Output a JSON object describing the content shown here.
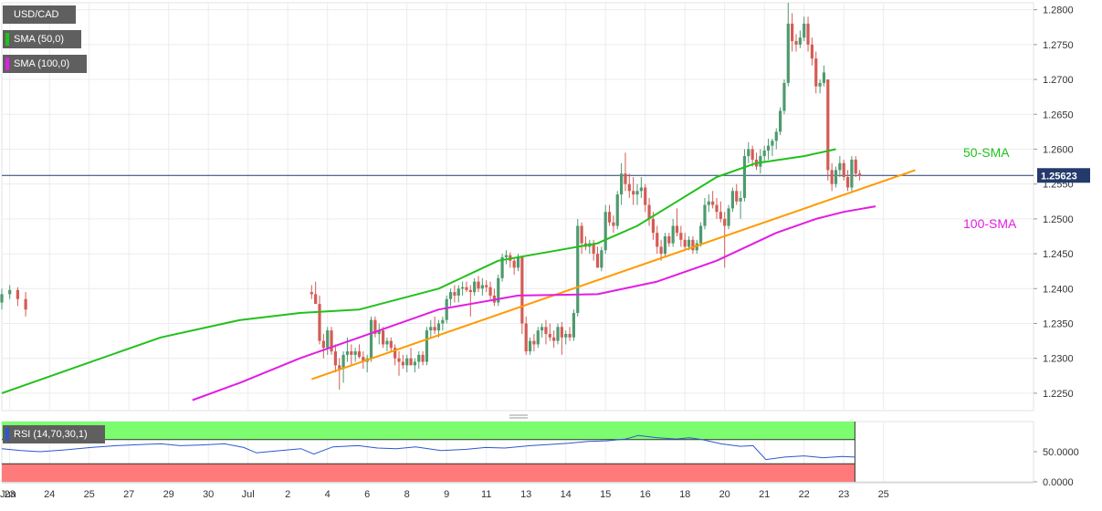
{
  "legend": {
    "symbol": "USD/CAD",
    "sma50_label": "SMA (50,0)",
    "sma100_label": "SMA (100,0)",
    "rsi_label": "RSI (14,70,30,1)"
  },
  "colors": {
    "bull": "#4e9a6f",
    "bear": "#d35c55",
    "sma50": "#22c01c",
    "sma100": "#e21de2",
    "trend": "#ff9a00",
    "rsi_line": "#2f56d1",
    "rsi_overbought": "#7cfc6f",
    "rsi_oversold": "#ff7b7b",
    "price_line": "#243a6b"
  },
  "chart_data": {
    "type": "candlestick",
    "instrument": "USD/CAD",
    "last_price": 1.25623,
    "last_price_label": "1.25623",
    "annotations": [
      "50-SMA",
      "100-SMA"
    ],
    "ylim": [
      1.2225,
      1.281
    ],
    "y_ticks": [
      1.225,
      1.23,
      1.235,
      1.24,
      1.245,
      1.25,
      1.255,
      1.26,
      1.265,
      1.27,
      1.275,
      1.28
    ],
    "y_tick_labels": [
      "1.2250",
      "1.2300",
      "1.2350",
      "1.2400",
      "1.2450",
      "1.2500",
      "1.2550",
      "1.2600",
      "1.2650",
      "1.2700",
      "1.2750",
      "1.2800"
    ],
    "x_ticks": [
      {
        "label": "Jun",
        "bar": -1
      },
      {
        "label": "23",
        "bar": 2
      },
      {
        "label": "24",
        "bar": 12
      },
      {
        "label": "25",
        "bar": 22
      },
      {
        "label": "27",
        "bar": 32
      },
      {
        "label": "29",
        "bar": 42
      },
      {
        "label": "30",
        "bar": 52
      },
      {
        "label": "Jul",
        "bar": 62
      },
      {
        "label": "2",
        "bar": 72
      },
      {
        "label": "4",
        "bar": 82
      },
      {
        "label": "6",
        "bar": 92
      },
      {
        "label": "8",
        "bar": 102
      },
      {
        "label": "9",
        "bar": 112
      },
      {
        "label": "11",
        "bar": 122
      },
      {
        "label": "13",
        "bar": 132
      },
      {
        "label": "14",
        "bar": 142
      },
      {
        "label": "15",
        "bar": 152
      },
      {
        "label": "16",
        "bar": 162
      },
      {
        "label": "18",
        "bar": 172
      },
      {
        "label": "20",
        "bar": 182
      },
      {
        "label": "21",
        "bar": 192
      },
      {
        "label": "22",
        "bar": 202
      },
      {
        "label": "23",
        "bar": 212
      },
      {
        "label": "25",
        "bar": 222
      }
    ],
    "candles": [
      [
        1.2395,
        1.2405,
        1.2385,
        1.2392
      ],
      [
        1.2392,
        1.241,
        1.238,
        1.2378
      ],
      [
        1.2378,
        1.239,
        1.232,
        1.2325
      ],
      [
        1.2325,
        1.2335,
        1.23,
        1.2315
      ],
      [
        1.2315,
        1.2345,
        1.2305,
        1.234
      ],
      [
        1.234,
        1.2345,
        1.2305,
        1.231
      ],
      [
        1.231,
        1.232,
        1.228,
        1.229
      ],
      [
        1.229,
        1.23,
        1.2255,
        1.2285
      ],
      [
        1.2285,
        1.231,
        1.2265,
        1.2305
      ],
      [
        1.2305,
        1.233,
        1.2295,
        1.231
      ],
      [
        1.231,
        1.232,
        1.229,
        1.2305
      ],
      [
        1.2305,
        1.2315,
        1.2295,
        1.231
      ],
      [
        1.231,
        1.232,
        1.23,
        1.2302
      ],
      [
        1.2302,
        1.231,
        1.2285,
        1.2295
      ],
      [
        1.2295,
        1.2305,
        1.228,
        1.23
      ],
      [
        1.23,
        1.236,
        1.2295,
        1.2355
      ],
      [
        1.2355,
        1.236,
        1.233,
        1.2335
      ],
      [
        1.2335,
        1.235,
        1.232,
        1.234
      ],
      [
        1.234,
        1.2345,
        1.2315,
        1.232
      ],
      [
        1.232,
        1.233,
        1.231,
        1.2325
      ],
      [
        1.2325,
        1.233,
        1.231,
        1.2315
      ],
      [
        1.2315,
        1.232,
        1.229,
        1.23
      ],
      [
        1.23,
        1.231,
        1.2275,
        1.2295
      ],
      [
        1.2295,
        1.2305,
        1.2285,
        1.229
      ],
      [
        1.229,
        1.2305,
        1.228,
        1.23
      ],
      [
        1.23,
        1.2315,
        1.229,
        1.229
      ],
      [
        1.229,
        1.23,
        1.228,
        1.2295
      ],
      [
        1.2295,
        1.231,
        1.2285,
        1.2305
      ],
      [
        1.2305,
        1.231,
        1.229,
        1.2295
      ],
      [
        1.2295,
        1.2345,
        1.229,
        1.234
      ],
      [
        1.234,
        1.2355,
        1.233,
        1.2345
      ],
      [
        1.2345,
        1.236,
        1.2335,
        1.234
      ],
      [
        1.234,
        1.2355,
        1.233,
        1.235
      ],
      [
        1.235,
        1.236,
        1.234,
        1.2355
      ],
      [
        1.2355,
        1.239,
        1.235,
        1.2385
      ],
      [
        1.2385,
        1.24,
        1.2375,
        1.2395
      ],
      [
        1.2395,
        1.2405,
        1.238,
        1.239
      ],
      [
        1.239,
        1.2405,
        1.238,
        1.24
      ],
      [
        1.24,
        1.241,
        1.239,
        1.2402
      ],
      [
        1.2402,
        1.241,
        1.2395,
        1.2398
      ],
      [
        1.2398,
        1.2405,
        1.236,
        1.2395
      ],
      [
        1.2395,
        1.2415,
        1.239,
        1.241
      ],
      [
        1.241,
        1.2418,
        1.2395,
        1.24
      ],
      [
        1.24,
        1.2415,
        1.239,
        1.2405
      ],
      [
        1.2405,
        1.2412,
        1.2395,
        1.2402
      ],
      [
        1.2402,
        1.241,
        1.2385,
        1.239
      ],
      [
        1.239,
        1.24,
        1.2375,
        1.238
      ],
      [
        1.238,
        1.242,
        1.2375,
        1.2415
      ],
      [
        1.2415,
        1.245,
        1.241,
        1.2445
      ],
      [
        1.2445,
        1.2455,
        1.2435,
        1.2448
      ],
      [
        1.2448,
        1.2452,
        1.243,
        1.244
      ],
      [
        1.244,
        1.2445,
        1.242,
        1.243
      ],
      [
        1.243,
        1.245,
        1.2425,
        1.2445
      ],
      [
        1.2445,
        1.244,
        1.2335,
        1.235
      ],
      [
        1.235,
        1.236,
        1.2305,
        1.231
      ],
      [
        1.231,
        1.233,
        1.2305,
        1.2325
      ],
      [
        1.2325,
        1.2335,
        1.231,
        1.232
      ],
      [
        1.232,
        1.2345,
        1.2315,
        1.234
      ],
      [
        1.234,
        1.235,
        1.233,
        1.2345
      ],
      [
        1.2345,
        1.2355,
        1.232,
        1.2335
      ],
      [
        1.2335,
        1.235,
        1.2325,
        1.233
      ],
      [
        1.233,
        1.234,
        1.2315,
        1.2325
      ],
      [
        1.2325,
        1.235,
        1.232,
        1.2345
      ],
      [
        1.2345,
        1.2352,
        1.2305,
        1.233
      ],
      [
        1.233,
        1.234,
        1.232,
        1.2335
      ],
      [
        1.2335,
        1.2345,
        1.2325,
        1.233
      ],
      [
        1.233,
        1.237,
        1.2325,
        1.2365
      ],
      [
        1.2365,
        1.25,
        1.236,
        1.249
      ],
      [
        1.249,
        1.2495,
        1.245,
        1.2465
      ],
      [
        1.2465,
        1.2475,
        1.2455,
        1.246
      ],
      [
        1.246,
        1.247,
        1.245,
        1.2465
      ],
      [
        1.2465,
        1.247,
        1.244,
        1.245
      ],
      [
        1.245,
        1.246,
        1.243,
        1.243
      ],
      [
        1.243,
        1.246,
        1.2425,
        1.2455
      ],
      [
        1.2455,
        1.252,
        1.245,
        1.251
      ],
      [
        1.251,
        1.252,
        1.249,
        1.2495
      ],
      [
        1.2495,
        1.2505,
        1.248,
        1.249
      ],
      [
        1.249,
        1.254,
        1.2485,
        1.2535
      ],
      [
        1.2535,
        1.258,
        1.252,
        1.2565
      ],
      [
        1.2565,
        1.2595,
        1.254,
        1.255
      ],
      [
        1.255,
        1.2565,
        1.253,
        1.254
      ],
      [
        1.254,
        1.256,
        1.252,
        1.2535
      ],
      [
        1.2535,
        1.255,
        1.252,
        1.254
      ],
      [
        1.254,
        1.256,
        1.253,
        1.2545
      ],
      [
        1.2545,
        1.255,
        1.251,
        1.252
      ],
      [
        1.252,
        1.253,
        1.249,
        1.25
      ],
      [
        1.25,
        1.251,
        1.247,
        1.248
      ],
      [
        1.248,
        1.249,
        1.245,
        1.246
      ],
      [
        1.246,
        1.247,
        1.244,
        1.245
      ],
      [
        1.245,
        1.248,
        1.2445,
        1.2475
      ],
      [
        1.2475,
        1.248,
        1.246,
        1.2465
      ],
      [
        1.2465,
        1.25,
        1.246,
        1.249
      ],
      [
        1.249,
        1.2515,
        1.2475,
        1.248
      ],
      [
        1.248,
        1.249,
        1.246,
        1.247
      ],
      [
        1.247,
        1.248,
        1.2455,
        1.246
      ],
      [
        1.246,
        1.2475,
        1.2455,
        1.247
      ],
      [
        1.247,
        1.2475,
        1.245,
        1.2455
      ],
      [
        1.2455,
        1.247,
        1.245,
        1.2465
      ],
      [
        1.2465,
        1.2495,
        1.246,
        1.249
      ],
      [
        1.249,
        1.253,
        1.2485,
        1.252
      ],
      [
        1.252,
        1.2535,
        1.251,
        1.2525
      ],
      [
        1.2525,
        1.254,
        1.2515,
        1.252
      ],
      [
        1.252,
        1.253,
        1.25,
        1.251
      ],
      [
        1.251,
        1.2525,
        1.2495,
        1.25
      ],
      [
        1.25,
        1.251,
        1.243,
        1.249
      ],
      [
        1.249,
        1.252,
        1.2485,
        1.2515
      ],
      [
        1.2515,
        1.2545,
        1.251,
        1.254
      ],
      [
        1.254,
        1.255,
        1.252,
        1.2525
      ],
      [
        1.2525,
        1.254,
        1.25,
        1.253
      ],
      [
        1.253,
        1.26,
        1.2525,
        1.259
      ],
      [
        1.259,
        1.261,
        1.258,
        1.26
      ],
      [
        1.26,
        1.2605,
        1.2575,
        1.2585
      ],
      [
        1.2585,
        1.2595,
        1.257,
        1.2575
      ],
      [
        1.2575,
        1.26,
        1.2565,
        1.259
      ],
      [
        1.259,
        1.2605,
        1.258,
        1.2598
      ],
      [
        1.2598,
        1.2615,
        1.2585,
        1.2605
      ],
      [
        1.2605,
        1.2615,
        1.259,
        1.2612
      ],
      [
        1.2612,
        1.263,
        1.26,
        1.2625
      ],
      [
        1.2625,
        1.266,
        1.262,
        1.2655
      ],
      [
        1.2655,
        1.27,
        1.265,
        1.2695
      ],
      [
        1.2695,
        1.281,
        1.269,
        1.278
      ],
      [
        1.278,
        1.2795,
        1.274,
        1.2755
      ],
      [
        1.2755,
        1.2765,
        1.274,
        1.275
      ],
      [
        1.275,
        1.277,
        1.2745,
        1.276
      ],
      [
        1.276,
        1.279,
        1.2755,
        1.278
      ],
      [
        1.278,
        1.279,
        1.274,
        1.275
      ],
      [
        1.275,
        1.276,
        1.272,
        1.273
      ],
      [
        1.273,
        1.274,
        1.268,
        1.269
      ],
      [
        1.269,
        1.27,
        1.268,
        1.2695
      ],
      [
        1.2695,
        1.272,
        1.269,
        1.271
      ],
      [
        1.27,
        1.27,
        1.2555,
        1.257
      ],
      [
        1.257,
        1.258,
        1.254,
        1.255
      ],
      [
        1.255,
        1.2575,
        1.2545,
        1.257
      ],
      [
        1.257,
        1.259,
        1.256,
        1.258
      ],
      [
        1.258,
        1.2585,
        1.2555,
        1.256
      ],
      [
        1.256,
        1.257,
        1.254,
        1.2545
      ],
      [
        1.2545,
        1.259,
        1.254,
        1.2585
      ],
      [
        1.2585,
        1.259,
        1.256,
        1.2565
      ],
      [
        1.2565,
        1.257,
        1.2555,
        1.2562
      ]
    ],
    "candle_bar_offset": 78,
    "sma50": [
      [
        0,
        1.225
      ],
      [
        20,
        1.229
      ],
      [
        40,
        1.233
      ],
      [
        60,
        1.2355
      ],
      [
        75,
        1.2365
      ],
      [
        90,
        1.237
      ],
      [
        110,
        1.24
      ],
      [
        125,
        1.244
      ],
      [
        140,
        1.2455
      ],
      [
        150,
        1.2465
      ],
      [
        160,
        1.249
      ],
      [
        170,
        1.2525
      ],
      [
        180,
        1.256
      ],
      [
        190,
        1.258
      ],
      [
        202,
        1.259
      ],
      [
        210,
        1.26
      ]
    ],
    "sma100": [
      [
        48,
        1.224
      ],
      [
        60,
        1.2265
      ],
      [
        75,
        1.23
      ],
      [
        90,
        1.233
      ],
      [
        110,
        1.237
      ],
      [
        130,
        1.239
      ],
      [
        150,
        1.2392
      ],
      [
        165,
        1.241
      ],
      [
        180,
        1.244
      ],
      [
        195,
        1.248
      ],
      [
        205,
        1.25
      ],
      [
        212,
        1.251
      ],
      [
        220,
        1.2518
      ]
    ],
    "trendline": [
      [
        78,
        1.227
      ],
      [
        230,
        1.257
      ]
    ],
    "last_bar": 212,
    "rsi": {
      "ylim": [
        0,
        100
      ],
      "overbought": 70,
      "oversold": 30,
      "y_ticks": [
        0,
        50
      ],
      "y_tick_labels": [
        "0.0000",
        "50.0000"
      ],
      "series": [
        [
          0,
          55
        ],
        [
          6,
          52
        ],
        [
          12,
          50
        ],
        [
          20,
          53
        ],
        [
          28,
          57
        ],
        [
          36,
          60
        ],
        [
          44,
          62
        ],
        [
          50,
          63
        ],
        [
          56,
          60
        ],
        [
          62,
          61
        ],
        [
          70,
          63
        ],
        [
          76,
          57
        ],
        [
          80,
          48
        ],
        [
          86,
          51
        ],
        [
          94,
          55
        ],
        [
          98,
          46
        ],
        [
          104,
          58
        ],
        [
          112,
          60
        ],
        [
          118,
          56
        ],
        [
          124,
          55
        ],
        [
          130,
          58
        ],
        [
          138,
          52
        ],
        [
          146,
          54
        ],
        [
          152,
          57
        ],
        [
          158,
          56
        ],
        [
          166,
          60
        ],
        [
          172,
          62
        ],
        [
          178,
          64
        ],
        [
          184,
          67
        ],
        [
          190,
          68
        ],
        [
          196,
          71
        ],
        [
          200,
          77
        ],
        [
          206,
          73
        ],
        [
          212,
          71
        ],
        [
          216,
          73
        ],
        [
          220,
          70
        ],
        [
          226,
          63
        ],
        [
          232,
          59
        ],
        [
          236,
          60
        ],
        [
          240,
          37
        ],
        [
          246,
          41
        ],
        [
          252,
          43
        ],
        [
          258,
          40
        ],
        [
          264,
          42
        ],
        [
          268,
          41
        ]
      ]
    }
  }
}
